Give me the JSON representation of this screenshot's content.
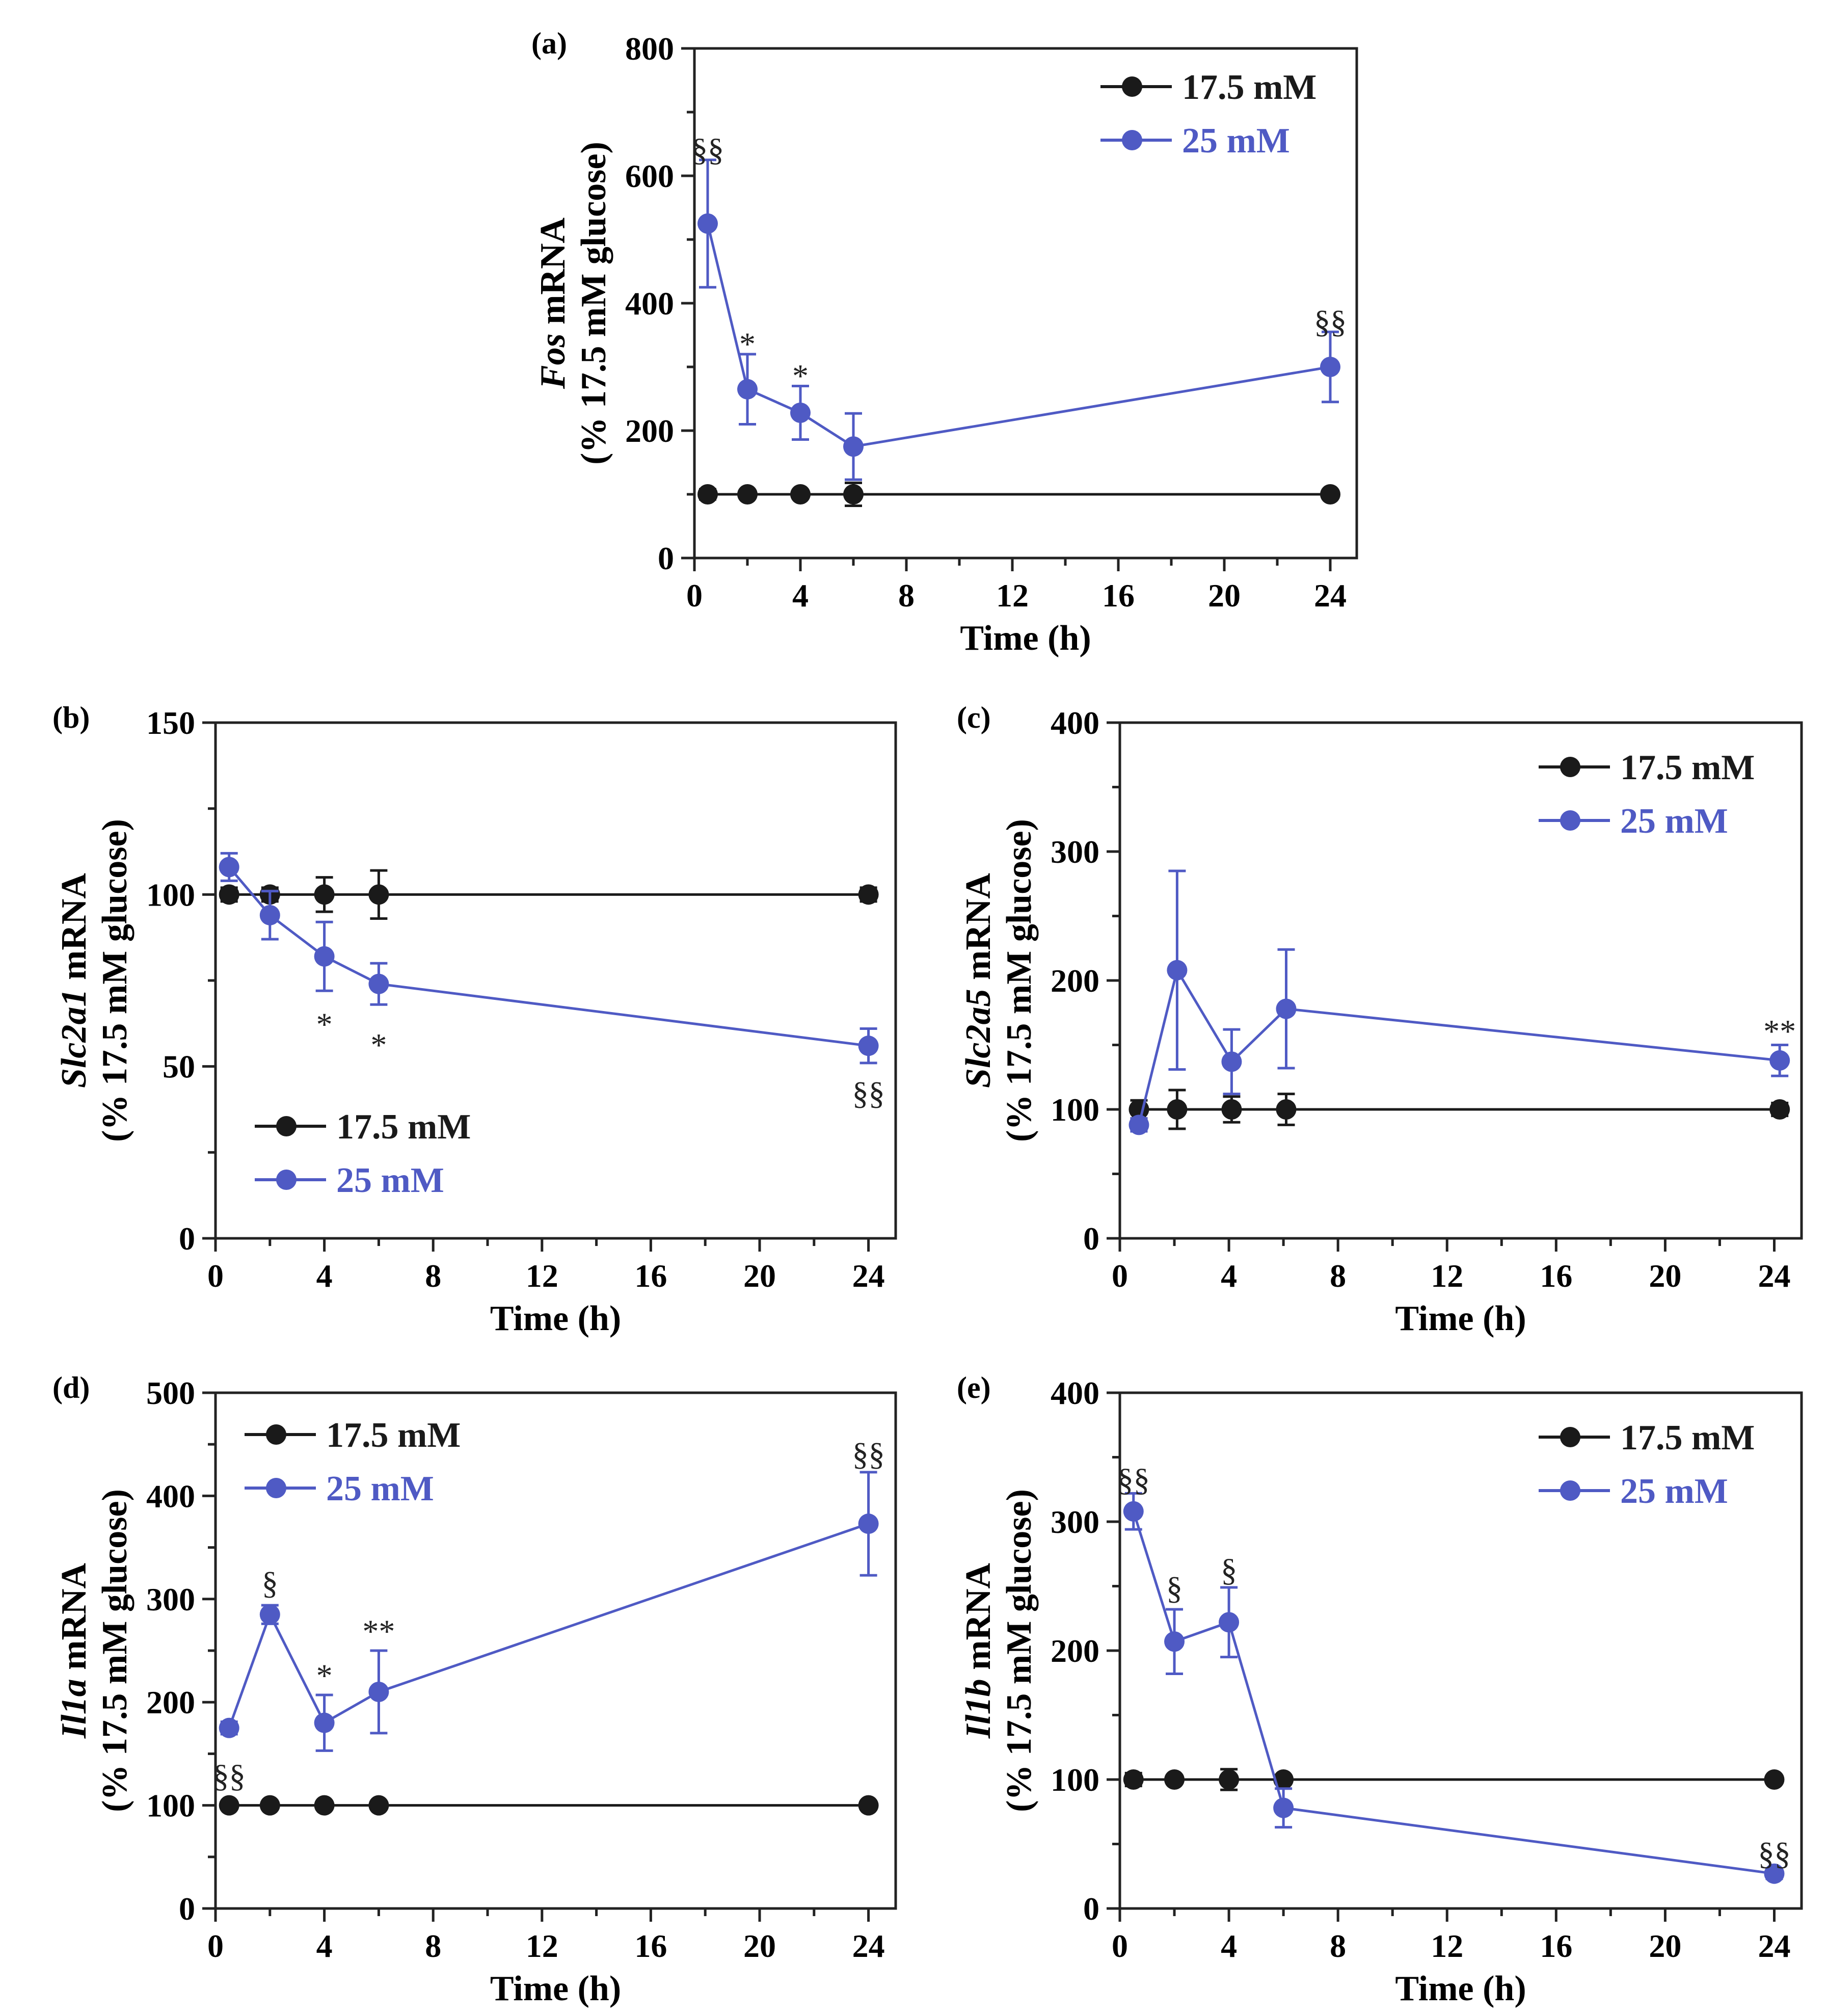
{
  "figure": {
    "colors": {
      "black_series": "#1a1a1a",
      "blue_series": "#4f5ac4",
      "axis": "#222222"
    }
  },
  "chart_data": [
    {
      "panel": "(a)",
      "type": "line",
      "gene": "Fos",
      "ylabel_rest": " mRNA",
      "ylabel_line2": "(% 17.5 mM glucose)",
      "xlabel": "Time (h)",
      "xlim": [
        0,
        25
      ],
      "ylim": [
        0,
        800
      ],
      "xticks": [
        0,
        4,
        8,
        12,
        16,
        20,
        24
      ],
      "yticks": [
        0,
        200,
        400,
        600,
        800
      ],
      "legend": "top-right",
      "series": [
        {
          "name": "17.5 mM",
          "color": "#1a1a1a",
          "x": [
            0.5,
            2,
            4,
            6,
            24
          ],
          "y": [
            100,
            100,
            100,
            100,
            100
          ],
          "err": [
            8,
            5,
            5,
            18,
            5
          ]
        },
        {
          "name": "25 mM",
          "color": "#4f5ac4",
          "x": [
            0.5,
            2,
            4,
            6,
            24
          ],
          "y": [
            525,
            265,
            228,
            175,
            300
          ],
          "err": [
            100,
            55,
            42,
            52,
            55
          ]
        }
      ],
      "annotations": [
        {
          "text": "§§",
          "x": 0.5,
          "y": 640
        },
        {
          "text": "*",
          "x": 2,
          "y": 335
        },
        {
          "text": "*",
          "x": 4,
          "y": 285
        },
        {
          "text": "§§",
          "x": 24,
          "y": 370
        }
      ]
    },
    {
      "panel": "(b)",
      "type": "line",
      "gene": "Slc2a1",
      "ylabel_rest": " mRNA",
      "ylabel_line2": "(% 17.5 mM glucose)",
      "xlabel": "Time (h)",
      "xlim": [
        0,
        25
      ],
      "ylim": [
        0,
        150
      ],
      "xticks": [
        0,
        4,
        8,
        12,
        16,
        20,
        24
      ],
      "yticks": [
        0,
        50,
        100,
        150
      ],
      "legend": "bottom-left",
      "series": [
        {
          "name": "17.5 mM",
          "color": "#1a1a1a",
          "x": [
            0.5,
            2,
            4,
            6,
            24
          ],
          "y": [
            100,
            100,
            100,
            100,
            100
          ],
          "err": [
            2,
            2,
            5,
            7,
            2
          ]
        },
        {
          "name": "25 mM",
          "color": "#4f5ac4",
          "x": [
            0.5,
            2,
            4,
            6,
            24
          ],
          "y": [
            108,
            94,
            82,
            74,
            56
          ],
          "err": [
            4,
            7,
            10,
            6,
            5
          ]
        }
      ],
      "annotations": [
        {
          "text": "*",
          "x": 4,
          "y": 62
        },
        {
          "text": "*",
          "x": 6,
          "y": 56
        },
        {
          "text": "§§",
          "x": 24,
          "y": 42
        }
      ]
    },
    {
      "panel": "(c)",
      "type": "line",
      "gene": "Slc2a5",
      "ylabel_rest": " mRNA",
      "ylabel_line2": "(% 17.5 mM glucose)",
      "xlabel": "Time (h)",
      "xlim": [
        0,
        25
      ],
      "ylim": [
        0,
        400
      ],
      "xticks": [
        0,
        4,
        8,
        12,
        16,
        20,
        24
      ],
      "yticks": [
        0,
        100,
        200,
        300,
        400
      ],
      "legend": "top-right",
      "series": [
        {
          "name": "17.5 mM",
          "color": "#1a1a1a",
          "x": [
            0.7,
            2.1,
            4.1,
            6.1,
            24.2
          ],
          "y": [
            100,
            100,
            100,
            100,
            100
          ],
          "err": [
            7,
            15,
            10,
            12,
            5
          ]
        },
        {
          "name": "25 mM",
          "color": "#4f5ac4",
          "x": [
            0.7,
            2.1,
            4.1,
            6.1,
            24.2
          ],
          "y": [
            88,
            208,
            137,
            178,
            138
          ],
          "err": [
            5,
            77,
            25,
            46,
            12
          ]
        }
      ],
      "annotations": [
        {
          "text": "**",
          "x": 24.2,
          "y": 160
        }
      ]
    },
    {
      "panel": "(d)",
      "type": "line",
      "gene": "Il1a",
      "ylabel_rest": " mRNA",
      "ylabel_line2": "(% 17.5 mM glucose)",
      "xlabel": "Time (h)",
      "xlim": [
        0,
        25
      ],
      "ylim": [
        0,
        500
      ],
      "xticks": [
        0,
        4,
        8,
        12,
        16,
        20,
        24
      ],
      "yticks": [
        0,
        100,
        200,
        300,
        400,
        500
      ],
      "legend": "top-left",
      "series": [
        {
          "name": "17.5 mM",
          "color": "#1a1a1a",
          "x": [
            0.5,
            2,
            4,
            6,
            24
          ],
          "y": [
            100,
            100,
            100,
            100,
            100
          ],
          "err": [
            3,
            3,
            3,
            3,
            3
          ]
        },
        {
          "name": "25 mM",
          "color": "#4f5ac4",
          "x": [
            0.5,
            2,
            4,
            6,
            24
          ],
          "y": [
            175,
            285,
            180,
            210,
            373
          ],
          "err": [
            6,
            9,
            27,
            40,
            50
          ]
        }
      ],
      "annotations": [
        {
          "text": "§§",
          "x": 0.5,
          "y": 128
        },
        {
          "text": "§",
          "x": 2,
          "y": 315
        },
        {
          "text": "*",
          "x": 4,
          "y": 225
        },
        {
          "text": "**",
          "x": 6,
          "y": 268
        },
        {
          "text": "§§",
          "x": 24,
          "y": 440
        }
      ]
    },
    {
      "panel": "(e)",
      "type": "line",
      "gene": "Il1b",
      "ylabel_rest": " mRNA",
      "ylabel_line2": "(% 17.5 mM glucose)",
      "xlabel": "Time (h)",
      "xlim": [
        0,
        25
      ],
      "ylim": [
        0,
        400
      ],
      "xticks": [
        0,
        4,
        8,
        12,
        16,
        20,
        24
      ],
      "yticks": [
        0,
        100,
        200,
        300,
        400
      ],
      "legend": "top-right",
      "series": [
        {
          "name": "17.5 mM",
          "color": "#1a1a1a",
          "x": [
            0.5,
            2,
            4,
            6,
            24
          ],
          "y": [
            100,
            100,
            100,
            100,
            100
          ],
          "err": [
            5,
            3,
            8,
            3,
            3
          ]
        },
        {
          "name": "25 mM",
          "color": "#4f5ac4",
          "x": [
            0.5,
            2,
            4,
            6,
            24
          ],
          "y": [
            308,
            207,
            222,
            78,
            27
          ],
          "err": [
            14,
            25,
            27,
            15,
            4
          ]
        }
      ],
      "annotations": [
        {
          "text": "§§",
          "x": 0.5,
          "y": 332
        },
        {
          "text": "§",
          "x": 2,
          "y": 248
        },
        {
          "text": "§",
          "x": 4,
          "y": 262
        },
        {
          "text": "§§",
          "x": 24,
          "y": 42
        }
      ]
    }
  ]
}
